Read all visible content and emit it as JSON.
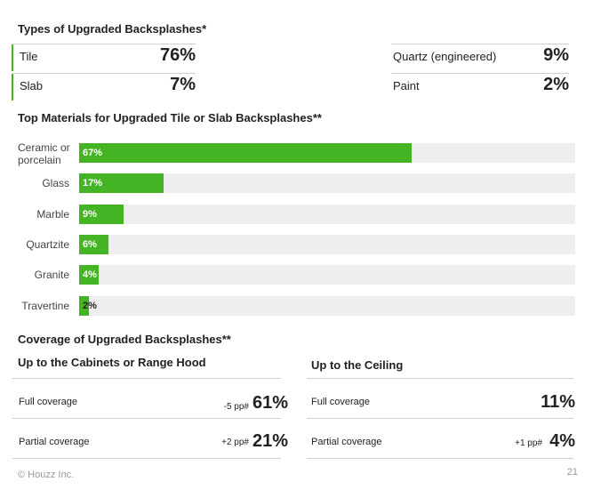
{
  "types_section": {
    "title": "Types of Upgraded Backsplashes*",
    "items": [
      {
        "label": "Tile",
        "value": "76%"
      },
      {
        "label": "Slab",
        "value": "7%"
      },
      {
        "label": "Quartz (engineered)",
        "value": "9%"
      },
      {
        "label": "Paint",
        "value": "2%"
      }
    ]
  },
  "materials_section": {
    "title": "Top Materials for Upgraded Tile or Slab Backsplashes**"
  },
  "chart_data": {
    "type": "bar",
    "orientation": "horizontal",
    "categories": [
      "Ceramic or porcelain",
      "Glass",
      "Marble",
      "Quartzite",
      "Granite",
      "Travertine"
    ],
    "values": [
      67,
      17,
      9,
      6,
      4,
      2
    ],
    "value_labels": [
      "67%",
      "17%",
      "9%",
      "6%",
      "4%",
      "2%"
    ],
    "xlim": [
      0,
      100
    ],
    "bar_color": "#45b424",
    "track_color": "#eeeeee",
    "grid": false
  },
  "coverage_section": {
    "title": "Coverage of Upgraded Backsplashes**",
    "left": {
      "title": "Up to the Cabinets or Range Hood",
      "rows": [
        {
          "label": "Full coverage",
          "delta": "-5 pp#",
          "value": "61%"
        },
        {
          "label": "Partial coverage",
          "delta": "+2 pp#",
          "value": "21%"
        }
      ]
    },
    "right": {
      "title": "Up to the Ceiling",
      "rows": [
        {
          "label": "Full coverage",
          "delta": "",
          "value": "11%"
        },
        {
          "label": "Partial coverage",
          "delta": "+1 pp#",
          "value": "4%"
        }
      ]
    }
  },
  "footer": {
    "copyright": "© Houzz Inc.",
    "page_number": "21"
  },
  "colors": {
    "accent": "#45b424",
    "rule": "#cfcfcf"
  }
}
